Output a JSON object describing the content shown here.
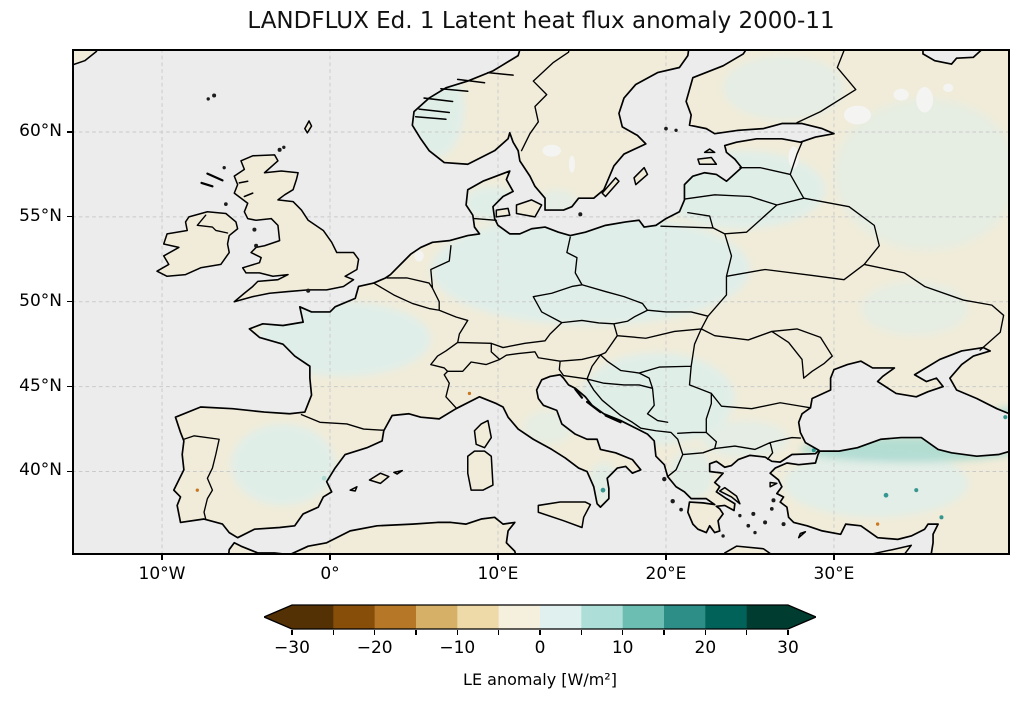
{
  "title": "LANDFLUX Ed. 1 Latent heat flux anomaly 2000-11",
  "map": {
    "projection": "PlateCarree",
    "region": "Europe",
    "extent": {
      "lon_min": -15.36,
      "lon_max": 40.48,
      "lat_min": 35.08,
      "lat_max": 64.89
    },
    "x_ticks": [
      {
        "label": "10°W",
        "lon": -10
      },
      {
        "label": "0°",
        "lon": 0
      },
      {
        "label": "10°E",
        "lon": 10
      },
      {
        "label": "20°E",
        "lon": 20
      },
      {
        "label": "30°E",
        "lon": 30
      }
    ],
    "y_ticks": [
      {
        "label": "60°N",
        "lat": 60
      },
      {
        "label": "55°N",
        "lat": 55
      },
      {
        "label": "50°N",
        "lat": 50
      },
      {
        "label": "45°N",
        "lat": 45
      },
      {
        "label": "40°N",
        "lat": 40
      }
    ],
    "grid_lons": [
      -10,
      0,
      10,
      20,
      30
    ],
    "grid_lats": [
      40,
      45,
      50,
      55,
      60
    ]
  },
  "colorbar": {
    "label": "LE anomaly [W/m²]",
    "units": "W/m2",
    "orientation": "horizontal",
    "extend": "both",
    "boundaries": [
      -30,
      -25,
      -20,
      -15,
      -10,
      -5,
      0,
      5,
      10,
      15,
      20,
      25,
      30
    ],
    "ticks": [
      -30,
      -20,
      -10,
      0,
      10,
      20,
      30
    ],
    "tick_labels": [
      "−30",
      "−20",
      "−10",
      "0",
      "10",
      "20",
      "30"
    ],
    "segment_colors": [
      "#543005",
      "#874e0a",
      "#b67827",
      "#d6b067",
      "#eedaa9",
      "#f5efde",
      "#e0f0ee",
      "#addfd8",
      "#6cbeb3",
      "#2c8e86",
      "#01625a",
      "#003c30"
    ],
    "under_color": "#543005",
    "over_color": "#003c30",
    "colormap": "BrBG"
  },
  "palette": {
    "background": "#ffffff",
    "sea": "#ececec",
    "land-cream": "#f1ecd9",
    "land-blue": "#dfeeea",
    "land-teal": "#aedbd2",
    "lake": "#f4f5f3",
    "coastline": "#000000",
    "grid": "#c9c9c9",
    "frame": "#000000",
    "text": "#111111"
  }
}
